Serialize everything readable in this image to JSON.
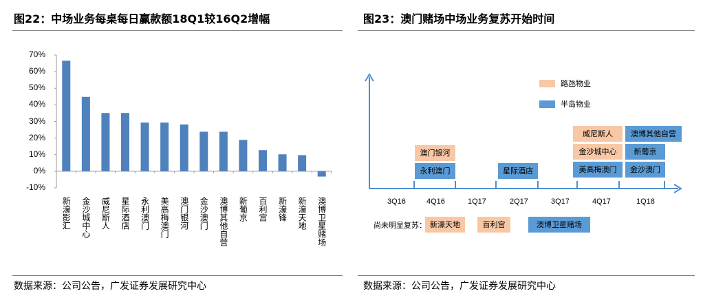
{
  "left": {
    "title": "图22：中场业务每桌每日赢款额18Q1较16Q2增幅",
    "source": "数据来源：公司公告，广发证券发展研究中心"
  },
  "right": {
    "title": "图23：澳门赌场中场业务复苏开始时间",
    "source": "数据来源：公司公告，广发证券发展研究中心",
    "legend": [
      {
        "label": "路氹物业",
        "color": "#f8c8a6"
      },
      {
        "label": "半岛物业",
        "color": "#5b9bd5"
      }
    ],
    "quarters": [
      "3Q16",
      "4Q16",
      "1Q17",
      "2Q17",
      "3Q17",
      "4Q17",
      "1Q18"
    ],
    "boxes": [
      {
        "label": "澳门银河",
        "quarter": "4Q16",
        "type": "路氹物业"
      },
      {
        "label": "永利澳门",
        "quarter": "4Q16",
        "type": "半岛物业"
      },
      {
        "label": "星际酒店",
        "quarter": "2Q17",
        "type": "半岛物业"
      },
      {
        "label": "威尼斯人",
        "quarter": "4Q17",
        "type": "路氹物业"
      },
      {
        "label": "金沙城中心",
        "quarter": "4Q17",
        "type": "路氹物业"
      },
      {
        "label": "美高梅澳门",
        "quarter": "4Q17",
        "type": "半岛物业"
      },
      {
        "label": "澳博其他自营",
        "quarter": "1Q18",
        "type": "半岛物业"
      },
      {
        "label": "新葡京",
        "quarter": "1Q18",
        "type": "半岛物业"
      },
      {
        "label": "金沙澳门",
        "quarter": "1Q18",
        "type": "半岛物业"
      }
    ],
    "not_recovered_label": "尚未明显复苏：",
    "not_recovered": [
      {
        "label": "新濠天地",
        "type": "路氹物业"
      },
      {
        "label": "百利宫",
        "type": "路氹物业"
      },
      {
        "label": "澳博卫星赌场",
        "type": "半岛物业"
      }
    ]
  },
  "chart_data": {
    "type": "bar",
    "title": "图22：中场业务每桌每日赢款额18Q1较16Q2增幅",
    "color": "#4f81bd",
    "categories": [
      "新濠影汇",
      "金沙城中心",
      "威尼斯人",
      "星际酒店",
      "永利澳门",
      "美高梅澳门",
      "澳门银河",
      "金沙澳门",
      "澳博其他自营",
      "新葡京",
      "百利宫",
      "新濠锋",
      "新濠天地",
      "澳博卫星赌场"
    ],
    "values": [
      66.6,
      44.8,
      35.1,
      35.1,
      29.3,
      29.3,
      28.2,
      23.8,
      23.8,
      18.9,
      12.7,
      10.2,
      9.7,
      -3.2
    ],
    "unit": "%",
    "ylim": [
      -10,
      70
    ],
    "yticks": [
      "70%",
      "60%",
      "50%",
      "40%",
      "30%",
      "20%",
      "10%",
      "0%",
      "-10%"
    ],
    "grid": false,
    "legend": "none"
  }
}
